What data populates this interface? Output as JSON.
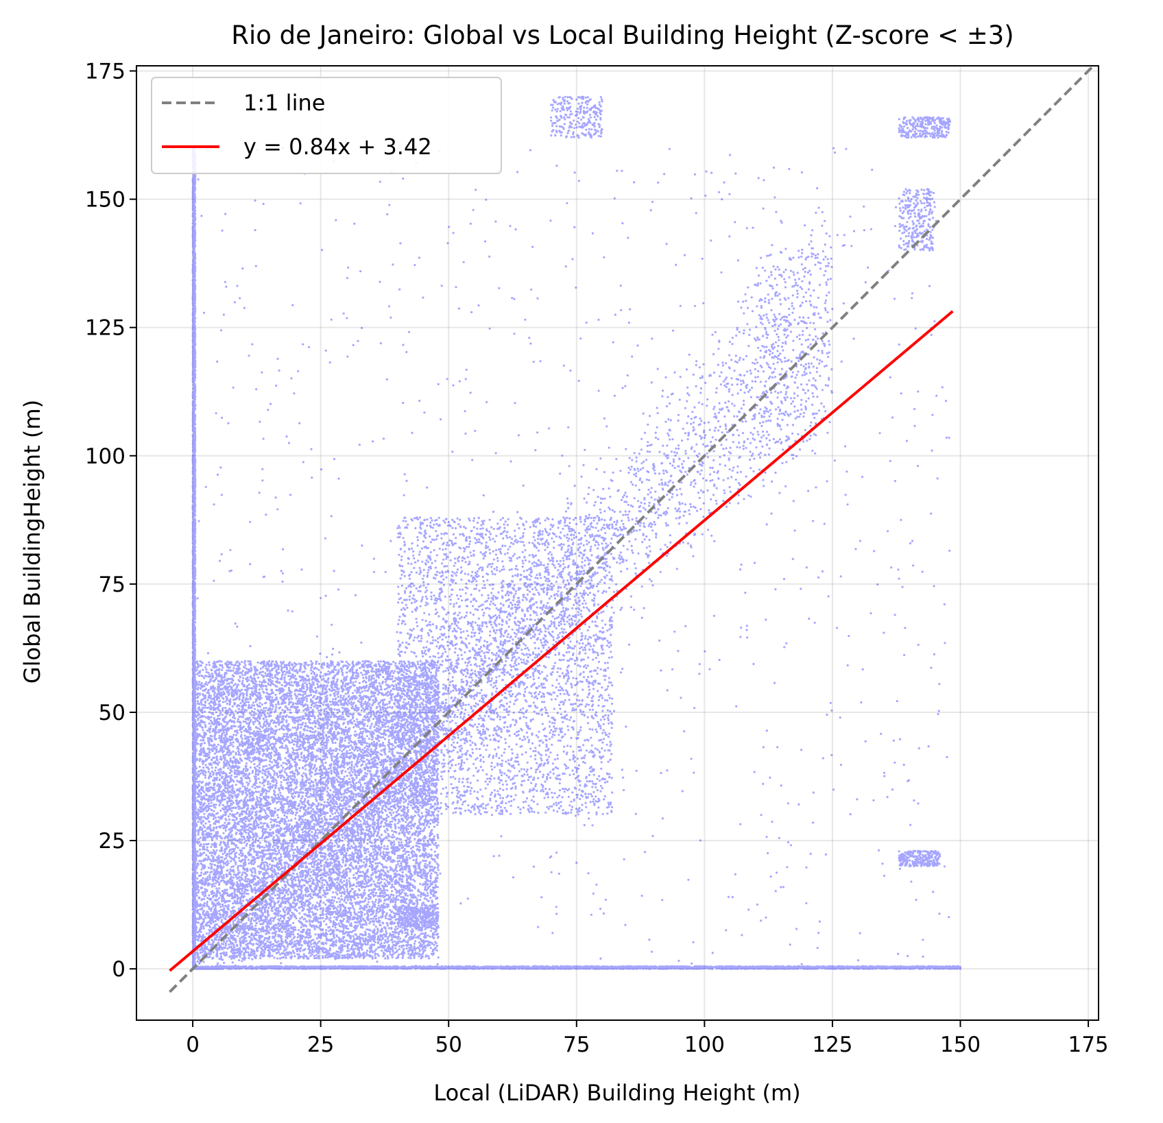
{
  "chart_data": {
    "type": "scatter",
    "title": "Rio de Janeiro: Global vs Local Building Height (Z-score < ±3)",
    "xlabel": "Local (LiDAR) Building Height (m)",
    "ylabel": "Global BuildingHeight (m)",
    "xlim": [
      -11,
      177
    ],
    "ylim": [
      -10,
      176
    ],
    "xticks": [
      0,
      25,
      50,
      75,
      100,
      125,
      150,
      175
    ],
    "yticks": [
      0,
      25,
      50,
      75,
      100,
      125,
      150,
      175
    ],
    "grid": true,
    "legend_position": "top-left",
    "colors": {
      "points": "#0000ff",
      "fit": "#ff0000",
      "identity": "#808080"
    },
    "lines": [
      {
        "name": "1:1 line",
        "style": "dashed",
        "x": [
          -4.5,
          176
        ],
        "y": [
          -4.5,
          176
        ]
      },
      {
        "name": "y = 0.84x + 3.42",
        "style": "solid",
        "slope": 0.84,
        "intercept": 3.42,
        "x": [
          -4.5,
          148.5
        ]
      }
    ],
    "points": {
      "series": "Local vs Global building heights",
      "approx_count": 60000,
      "clusters": [
        {
          "x": [
            0,
            48
          ],
          "y": [
            2,
            60
          ],
          "density": "very high"
        },
        {
          "x": [
            40,
            82
          ],
          "y": [
            30,
            88
          ],
          "density": "high"
        },
        {
          "x": [
            0,
            0.5
          ],
          "y": [
            0,
            160
          ],
          "density": "high"
        },
        {
          "x": [
            0,
            150
          ],
          "y": [
            0,
            0.5
          ],
          "density": "high"
        },
        {
          "x": [
            70,
            80
          ],
          "y": [
            162,
            170
          ],
          "density": "medium"
        },
        {
          "x": [
            138,
            148
          ],
          "y": [
            162,
            166
          ],
          "density": "medium"
        },
        {
          "x": [
            110,
            122
          ],
          "y": [
            100,
            140
          ],
          "density": "medium"
        },
        {
          "x": [
            138,
            145
          ],
          "y": [
            140,
            152
          ],
          "density": "medium"
        },
        {
          "x": [
            138,
            146
          ],
          "y": [
            20,
            23
          ],
          "density": "medium"
        },
        {
          "x": [
            40,
            48
          ],
          "y": [
            8,
            12
          ],
          "density": "medium"
        }
      ]
    }
  }
}
